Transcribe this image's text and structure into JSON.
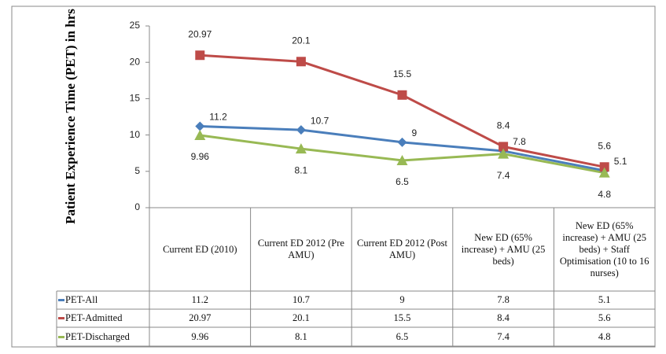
{
  "chart_data": {
    "type": "line",
    "y_label": "Patient Experience Time (PET) in hrs",
    "categories": [
      "Current ED (2010)",
      "Current ED  2012 (Pre AMU)",
      "Current ED 2012 (Post AMU)",
      "New ED (65% increase) + AMU (25 beds)",
      "New ED (65% increase) + AMU (25 beds) + Staff Optimisation (10 to 16 nurses)"
    ],
    "series": [
      {
        "name": "PET-All",
        "color": "#4a7ebb",
        "marker": "diamond",
        "values": [
          11.2,
          10.7,
          9,
          7.8,
          5.1
        ]
      },
      {
        "name": "PET-Admitted",
        "color": "#be4b48",
        "marker": "square",
        "values": [
          20.97,
          20.1,
          15.5,
          8.4,
          5.6
        ]
      },
      {
        "name": "PET-Discharged",
        "color": "#98b954",
        "marker": "triangle",
        "values": [
          9.96,
          8.1,
          6.5,
          7.4,
          4.8
        ]
      }
    ],
    "ylim": [
      0,
      25
    ],
    "yticks": [
      0,
      5,
      10,
      15,
      20,
      25
    ],
    "data_table": true
  }
}
